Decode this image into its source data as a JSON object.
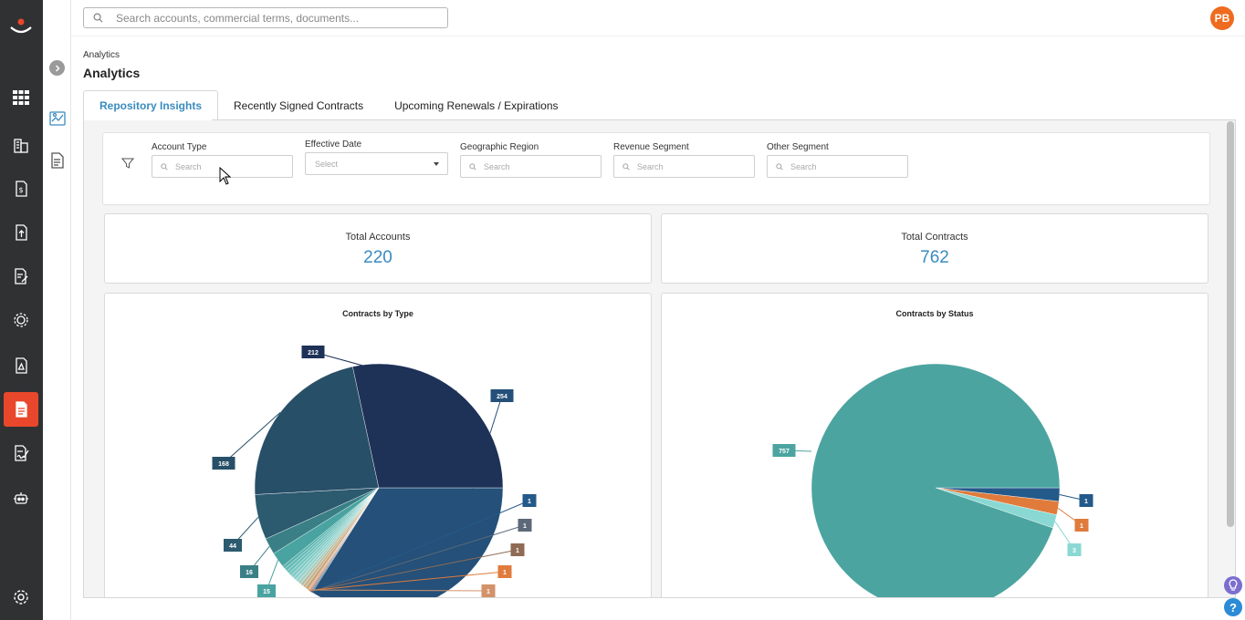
{
  "search": {
    "placeholder": "Search accounts, commercial terms, documents..."
  },
  "user": {
    "initials": "PB"
  },
  "breadcrumb": "Analytics",
  "page_title": "Analytics",
  "tabs": [
    {
      "label": "Repository Insights",
      "active": true
    },
    {
      "label": "Recently Signed Contracts",
      "active": false
    },
    {
      "label": "Upcoming Renewals / Expirations",
      "active": false
    }
  ],
  "filters": [
    {
      "label": "Account Type",
      "placeholder": "Search",
      "kind": "search"
    },
    {
      "label": "Effective Date",
      "placeholder": "Select",
      "kind": "select"
    },
    {
      "label": "Geographic Region",
      "placeholder": "Search",
      "kind": "search"
    },
    {
      "label": "Revenue Segment",
      "placeholder": "Search",
      "kind": "search"
    },
    {
      "label": "Other Segment",
      "placeholder": "Search",
      "kind": "search"
    }
  ],
  "stats": [
    {
      "label": "Total Accounts",
      "value": "220"
    },
    {
      "label": "Total Contracts",
      "value": "762"
    }
  ],
  "colors": {
    "accent": "#3a8bbf",
    "rail": "#2f3133",
    "active_nav": "#e9472b",
    "avatar": "#ef6b1f"
  },
  "rail_icons": [
    "grid-icon",
    "buildings-icon",
    "dollar-doc-icon",
    "upload-doc-icon",
    "edit-doc-icon",
    "cog-network-icon",
    "pdf-doc-icon",
    "analytics-doc-icon",
    "signature-icon",
    "robot-icon",
    "settings-icon"
  ],
  "chart_data": [
    {
      "type": "pie",
      "title": "Contracts by Type",
      "labelled_values": [
        254,
        1,
        1,
        1,
        1,
        1,
        15,
        16,
        44,
        168,
        212
      ],
      "labelled_colors": [
        "#245079",
        "#245a8a",
        "#5d6978",
        "#8f6a55",
        "#e07b3c",
        "#d3936a",
        "#49a3a0",
        "#3a7f86",
        "#2c5a6f",
        "#284f68",
        "#1e3157"
      ]
    },
    {
      "type": "pie",
      "title": "Contracts by Status",
      "slices": [
        {
          "value": 757,
          "color": "#4ba49f"
        },
        {
          "value": 1,
          "color": "#245a8a"
        },
        {
          "value": 1,
          "color": "#e07b3c"
        },
        {
          "value": 3,
          "color": "#8ad8d3"
        }
      ]
    }
  ]
}
